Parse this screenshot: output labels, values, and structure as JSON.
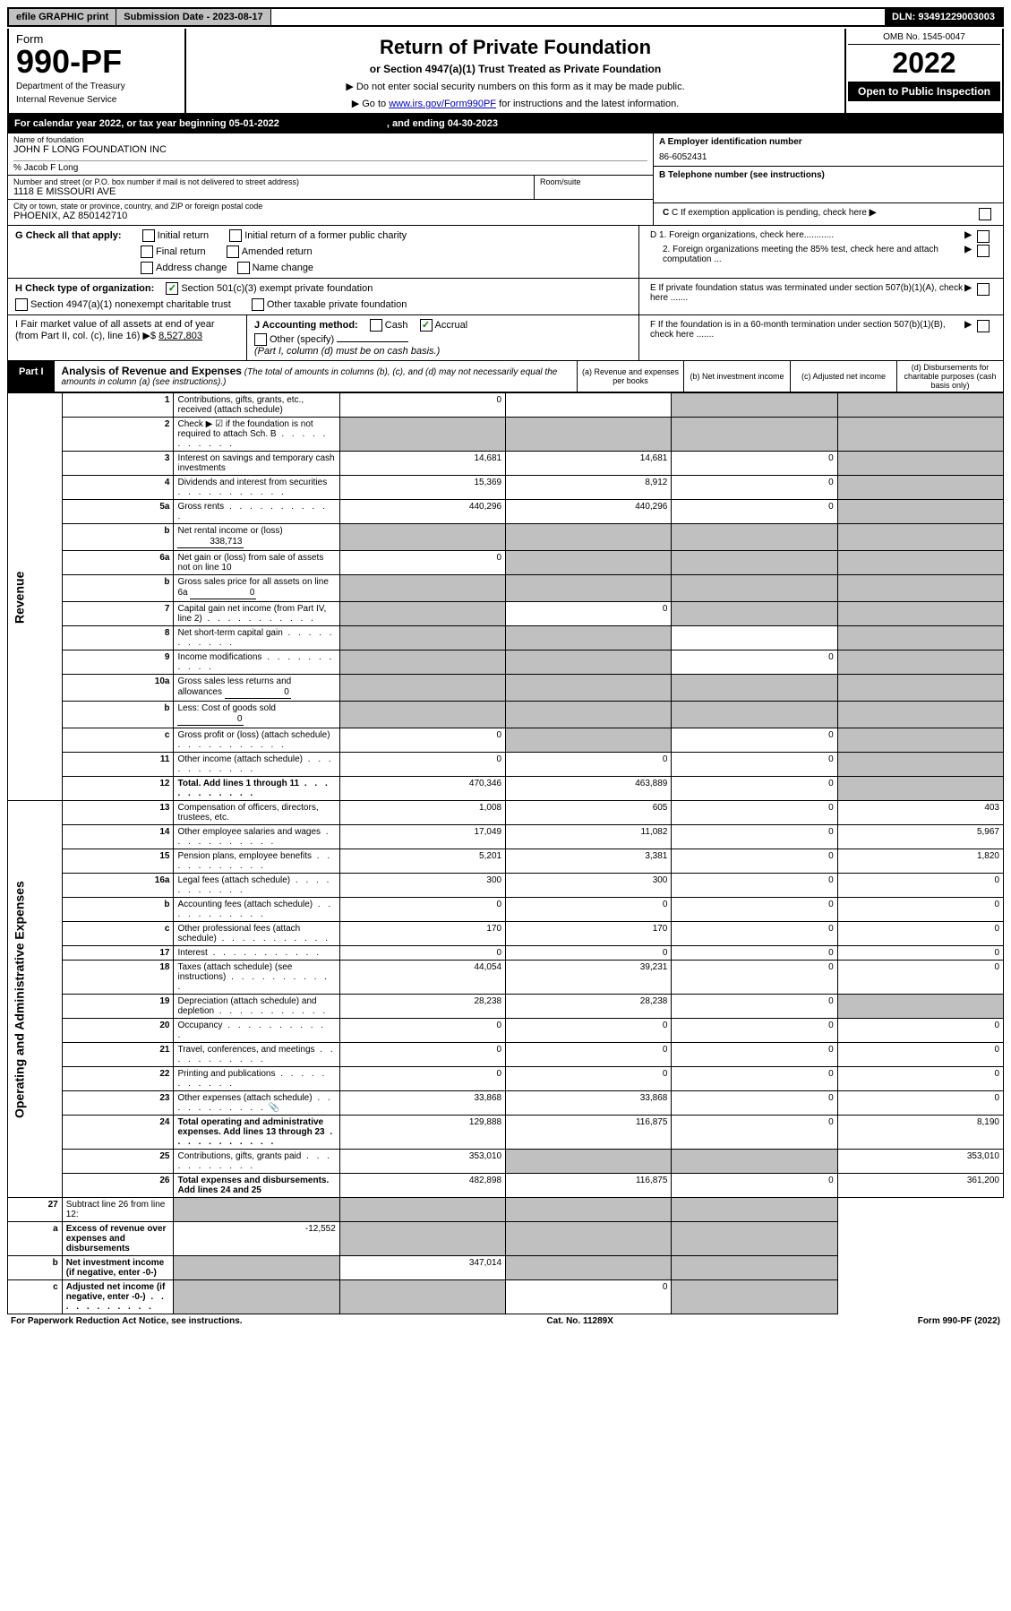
{
  "topbar": {
    "efile": "efile GRAPHIC print",
    "subdate_label": "Submission Date - ",
    "subdate": "2023-08-17",
    "dln_label": "DLN: ",
    "dln": "93491229003003"
  },
  "header": {
    "form_label": "Form",
    "form_no": "990-PF",
    "dept1": "Department of the Treasury",
    "dept2": "Internal Revenue Service",
    "title": "Return of Private Foundation",
    "subtitle": "or Section 4947(a)(1) Trust Treated as Private Foundation",
    "note1": "▶ Do not enter social security numbers on this form as it may be made public.",
    "note2_pre": "▶ Go to ",
    "note2_link": "www.irs.gov/Form990PF",
    "note2_post": " for instructions and the latest information.",
    "omb": "OMB No. 1545-0047",
    "year": "2022",
    "open_public": "Open to Public Inspection"
  },
  "banner": {
    "left": "For calendar year 2022, or tax year beginning 05-01-2022",
    "right": ", and ending 04-30-2023"
  },
  "info": {
    "name_label": "Name of foundation",
    "name": "JOHN F LONG FOUNDATION INC",
    "care_of": "% Jacob F Long",
    "addr_label": "Number and street (or P.O. box number if mail is not delivered to street address)",
    "addr": "1118 E MISSOURI AVE",
    "room_label": "Room/suite",
    "city_label": "City or town, state or province, country, and ZIP or foreign postal code",
    "city": "PHOENIX, AZ  850142710",
    "a_label": "A Employer identification number",
    "a_val": "86-6052431",
    "b_label": "B Telephone number (see instructions)",
    "c_label": "C If exemption application is pending, check here",
    "d1_label": "D 1. Foreign organizations, check here............",
    "d2_label": "2. Foreign organizations meeting the 85% test, check here and attach computation ...",
    "e_label": "E If private foundation status was terminated under section 507(b)(1)(A), check here .......",
    "f_label": "F If the foundation is in a 60-month termination under section 507(b)(1)(B), check here .......",
    "g_label": "G Check all that apply:",
    "g_opts": [
      "Initial return",
      "Initial return of a former public charity",
      "Final return",
      "Amended return",
      "Address change",
      "Name change"
    ],
    "h_label": "H Check type of organization:",
    "h_501": "Section 501(c)(3) exempt private foundation",
    "h_4947": "Section 4947(a)(1) nonexempt charitable trust",
    "h_other": "Other taxable private foundation",
    "i_label": "I Fair market value of all assets at end of year (from Part II, col. (c), line 16) ▶$",
    "i_val": "8,527,803",
    "j_label": "J Accounting method:",
    "j_cash": "Cash",
    "j_accrual": "Accrual",
    "j_other": "Other (specify)",
    "j_note": "(Part I, column (d) must be on cash basis.)"
  },
  "part1": {
    "label": "Part I",
    "title": "Analysis of Revenue and Expenses",
    "title_note": "(The total of amounts in columns (b), (c), and (d) may not necessarily equal the amounts in column (a) (see instructions).)",
    "col_a": "(a) Revenue and expenses per books",
    "col_b": "(b) Net investment income",
    "col_c": "(c) Adjusted net income",
    "col_d": "(d) Disbursements for charitable purposes (cash basis only)",
    "revenue_label": "Revenue",
    "expenses_label": "Operating and Administrative Expenses"
  },
  "rows": [
    {
      "n": "1",
      "l": "Contributions, gifts, grants, etc., received (attach schedule)",
      "a": "0",
      "b": "",
      "c": "",
      "d": "",
      "shade": [
        "c",
        "d"
      ]
    },
    {
      "n": "2",
      "l": "Check ▶ ☑ if the foundation is not required to attach Sch. B",
      "a": "",
      "b": "",
      "c": "",
      "d": "",
      "shade": [
        "a",
        "b",
        "c",
        "d"
      ],
      "dots": true
    },
    {
      "n": "3",
      "l": "Interest on savings and temporary cash investments",
      "a": "14,681",
      "b": "14,681",
      "c": "0",
      "d": "",
      "shade": [
        "d"
      ]
    },
    {
      "n": "4",
      "l": "Dividends and interest from securities",
      "a": "15,369",
      "b": "8,912",
      "c": "0",
      "d": "",
      "shade": [
        "d"
      ],
      "dots": true
    },
    {
      "n": "5a",
      "l": "Gross rents",
      "a": "440,296",
      "b": "440,296",
      "c": "0",
      "d": "",
      "shade": [
        "d"
      ],
      "dots": true
    },
    {
      "n": "b",
      "l": "Net rental income or (loss)",
      "inline": "338,713",
      "a": "",
      "b": "",
      "c": "",
      "d": "",
      "shade": [
        "a",
        "b",
        "c",
        "d"
      ]
    },
    {
      "n": "6a",
      "l": "Net gain or (loss) from sale of assets not on line 10",
      "a": "0",
      "b": "",
      "c": "",
      "d": "",
      "shade": [
        "b",
        "c",
        "d"
      ]
    },
    {
      "n": "b",
      "l": "Gross sales price for all assets on line 6a",
      "inline": "0",
      "a": "",
      "b": "",
      "c": "",
      "d": "",
      "shade": [
        "a",
        "b",
        "c",
        "d"
      ]
    },
    {
      "n": "7",
      "l": "Capital gain net income (from Part IV, line 2)",
      "a": "",
      "b": "0",
      "c": "",
      "d": "",
      "shade": [
        "a",
        "c",
        "d"
      ],
      "dots": true
    },
    {
      "n": "8",
      "l": "Net short-term capital gain",
      "a": "",
      "b": "",
      "c": "",
      "d": "",
      "shade": [
        "a",
        "b",
        "d"
      ],
      "dots": true
    },
    {
      "n": "9",
      "l": "Income modifications",
      "a": "",
      "b": "",
      "c": "0",
      "d": "",
      "shade": [
        "a",
        "b",
        "d"
      ],
      "dots": true
    },
    {
      "n": "10a",
      "l": "Gross sales less returns and allowances",
      "inline": "0",
      "a": "",
      "b": "",
      "c": "",
      "d": "",
      "shade": [
        "a",
        "b",
        "c",
        "d"
      ]
    },
    {
      "n": "b",
      "l": "Less: Cost of goods sold",
      "inline": "0",
      "a": "",
      "b": "",
      "c": "",
      "d": "",
      "shade": [
        "a",
        "b",
        "c",
        "d"
      ],
      "dots": true
    },
    {
      "n": "c",
      "l": "Gross profit or (loss) (attach schedule)",
      "a": "0",
      "b": "",
      "c": "0",
      "d": "",
      "shade": [
        "b",
        "d"
      ],
      "dots": true
    },
    {
      "n": "11",
      "l": "Other income (attach schedule)",
      "a": "0",
      "b": "0",
      "c": "0",
      "d": "",
      "shade": [
        "d"
      ],
      "dots": true
    },
    {
      "n": "12",
      "l": "Total. Add lines 1 through 11",
      "a": "470,346",
      "b": "463,889",
      "c": "0",
      "d": "",
      "shade": [
        "d"
      ],
      "bold": true,
      "dots": true
    }
  ],
  "exp_rows": [
    {
      "n": "13",
      "l": "Compensation of officers, directors, trustees, etc.",
      "a": "1,008",
      "b": "605",
      "c": "0",
      "d": "403"
    },
    {
      "n": "14",
      "l": "Other employee salaries and wages",
      "a": "17,049",
      "b": "11,082",
      "c": "0",
      "d": "5,967",
      "dots": true
    },
    {
      "n": "15",
      "l": "Pension plans, employee benefits",
      "a": "5,201",
      "b": "3,381",
      "c": "0",
      "d": "1,820",
      "dots": true
    },
    {
      "n": "16a",
      "l": "Legal fees (attach schedule)",
      "a": "300",
      "b": "300",
      "c": "0",
      "d": "0",
      "dots": true
    },
    {
      "n": "b",
      "l": "Accounting fees (attach schedule)",
      "a": "0",
      "b": "0",
      "c": "0",
      "d": "0",
      "dots": true
    },
    {
      "n": "c",
      "l": "Other professional fees (attach schedule)",
      "a": "170",
      "b": "170",
      "c": "0",
      "d": "0",
      "dots": true
    },
    {
      "n": "17",
      "l": "Interest",
      "a": "0",
      "b": "0",
      "c": "0",
      "d": "0",
      "dots": true
    },
    {
      "n": "18",
      "l": "Taxes (attach schedule) (see instructions)",
      "a": "44,054",
      "b": "39,231",
      "c": "0",
      "d": "0",
      "dots": true
    },
    {
      "n": "19",
      "l": "Depreciation (attach schedule) and depletion",
      "a": "28,238",
      "b": "28,238",
      "c": "0",
      "d": "",
      "shade": [
        "d"
      ],
      "dots": true
    },
    {
      "n": "20",
      "l": "Occupancy",
      "a": "0",
      "b": "0",
      "c": "0",
      "d": "0",
      "dots": true
    },
    {
      "n": "21",
      "l": "Travel, conferences, and meetings",
      "a": "0",
      "b": "0",
      "c": "0",
      "d": "0",
      "dots": true
    },
    {
      "n": "22",
      "l": "Printing and publications",
      "a": "0",
      "b": "0",
      "c": "0",
      "d": "0",
      "dots": true
    },
    {
      "n": "23",
      "l": "Other expenses (attach schedule)",
      "a": "33,868",
      "b": "33,868",
      "c": "0",
      "d": "0",
      "icon": true,
      "dots": true
    },
    {
      "n": "24",
      "l": "Total operating and administrative expenses. Add lines 13 through 23",
      "a": "129,888",
      "b": "116,875",
      "c": "0",
      "d": "8,190",
      "bold": true,
      "dots": true
    },
    {
      "n": "25",
      "l": "Contributions, gifts, grants paid",
      "a": "353,010",
      "b": "",
      "c": "",
      "d": "353,010",
      "shade": [
        "b",
        "c"
      ],
      "dots": true
    },
    {
      "n": "26",
      "l": "Total expenses and disbursements. Add lines 24 and 25",
      "a": "482,898",
      "b": "116,875",
      "c": "0",
      "d": "361,200",
      "bold": true
    }
  ],
  "net_rows": [
    {
      "n": "27",
      "l": "Subtract line 26 from line 12:",
      "a": "",
      "b": "",
      "c": "",
      "d": "",
      "shade": [
        "a",
        "b",
        "c",
        "d"
      ]
    },
    {
      "n": "a",
      "l": "Excess of revenue over expenses and disbursements",
      "a": "-12,552",
      "b": "",
      "c": "",
      "d": "",
      "shade": [
        "b",
        "c",
        "d"
      ],
      "bold": true
    },
    {
      "n": "b",
      "l": "Net investment income (if negative, enter -0-)",
      "a": "",
      "b": "347,014",
      "c": "",
      "d": "",
      "shade": [
        "a",
        "c",
        "d"
      ],
      "bold": true
    },
    {
      "n": "c",
      "l": "Adjusted net income (if negative, enter -0-)",
      "a": "",
      "b": "",
      "c": "0",
      "d": "",
      "shade": [
        "a",
        "b",
        "d"
      ],
      "bold": true,
      "dots": true
    }
  ],
  "footer": {
    "left": "For Paperwork Reduction Act Notice, see instructions.",
    "center": "Cat. No. 11289X",
    "right": "Form 990-PF (2022)"
  }
}
